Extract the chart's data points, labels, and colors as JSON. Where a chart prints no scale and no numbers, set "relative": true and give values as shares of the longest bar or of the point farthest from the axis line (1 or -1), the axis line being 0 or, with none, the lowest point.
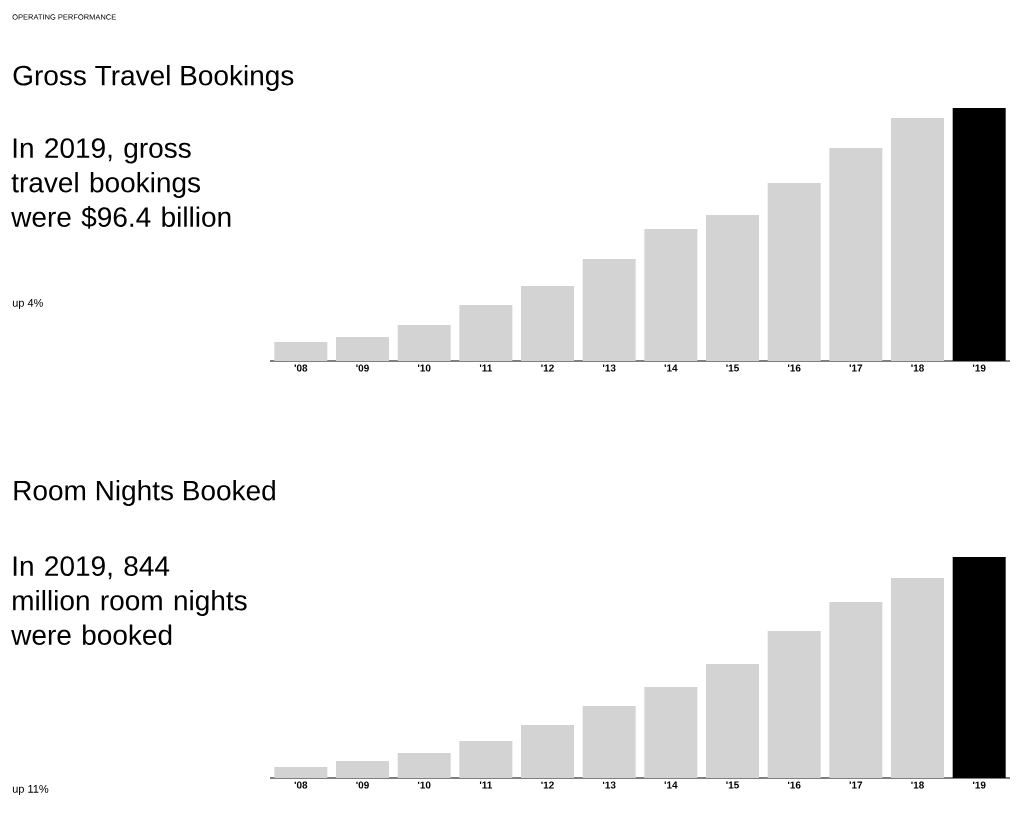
{
  "chart_data": [
    {
      "type": "bar",
      "title": "Gross Travel Bookings",
      "subtitle": "In 2019, gross travel bookings were $96.4 billion",
      "annotations": [
        "OPERATING PERFORMANCE",
        "up 4%"
      ],
      "categories": [
        "'08",
        "'09",
        "'10",
        "'11",
        "'12",
        "'13",
        "'14",
        "'15",
        "'16",
        "'17",
        "'18",
        "'19"
      ],
      "values": [
        0.075,
        0.095,
        0.142,
        0.221,
        0.296,
        0.403,
        0.522,
        0.577,
        0.704,
        0.842,
        0.96,
        1
      ],
      "colors": [
        "#d3d3d3",
        "#d3d3d3",
        "#d3d3d3",
        "#d3d3d3",
        "#d3d3d3",
        "#d3d3d3",
        "#d3d3d3",
        "#d3d3d3",
        "#d3d3d3",
        "#d3d3d3",
        "#d3d3d3",
        "#000000"
      ],
      "relative": true
    },
    {
      "type": "bar",
      "title": "Room Nights Booked",
      "subtitle": "In 2019, 844 million room nights were booked",
      "annotations": [
        "up 11%"
      ],
      "categories": [
        "'08",
        "'09",
        "'10",
        "'11",
        "'12",
        "'13",
        "'14",
        "'15",
        "'16",
        "'17",
        "'18",
        "'19"
      ],
      "values": [
        0.05,
        0.077,
        0.113,
        0.167,
        0.24,
        0.326,
        0.412,
        0.516,
        0.665,
        0.796,
        0.905,
        1
      ],
      "colors": [
        "#d3d3d3",
        "#d3d3d3",
        "#d3d3d3",
        "#d3d3d3",
        "#d3d3d3",
        "#d3d3d3",
        "#d3d3d3",
        "#d3d3d3",
        "#d3d3d3",
        "#d3d3d3",
        "#d3d3d3",
        "#000000"
      ],
      "relative": true
    }
  ]
}
